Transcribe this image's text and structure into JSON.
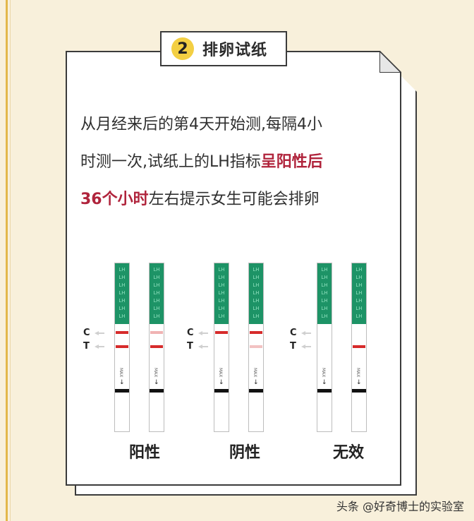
{
  "badge": {
    "number": "2",
    "title": "排卵试纸"
  },
  "paragraph": {
    "line1": "从月经来后的第4天开始测,每隔4小",
    "line2_a": "时测一次,试纸上的LH指标",
    "line2_hl": "呈阳性后",
    "line3_hl": "36个小时",
    "line3_b": "左右提示女生可能会排卵"
  },
  "strips": {
    "top_text": "LH LH LH LH LH LH LH",
    "max_text": "MAX",
    "c_label": "C",
    "t_label": "T",
    "groups": [
      {
        "label": "阳性",
        "c_band": "strong",
        "t_band": "strong",
        "second": {
          "c_band": "faint",
          "t_band": "strong"
        }
      },
      {
        "label": "阴性",
        "c_band": "strong",
        "t_band": "none",
        "second": {
          "c_band": "strong",
          "t_band": "faint"
        }
      },
      {
        "label": "无效",
        "c_band": "none",
        "t_band": "none",
        "second": {
          "c_band": "none",
          "t_band": "strong"
        }
      }
    ]
  },
  "colors": {
    "accent_red": "#b0243c",
    "band_red": "#d62b2b",
    "strip_green": "#1d9366",
    "badge_yellow": "#f3cf43",
    "background": "#f8f0db"
  },
  "watermark": "头条 @好奇博士的实验室"
}
